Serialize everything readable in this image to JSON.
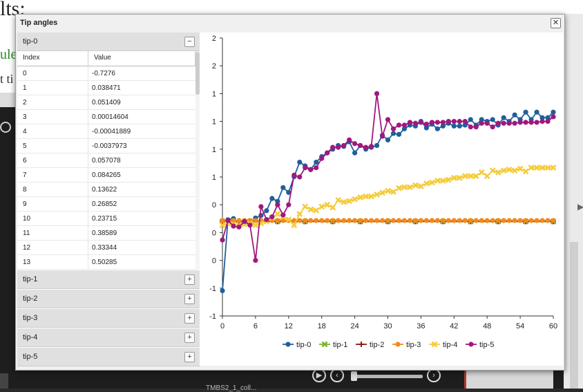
{
  "background": {
    "title_fragment": "lts:",
    "green_fragment": "ule",
    "text_fragment": "t ti",
    "caption_fragment": "TMBS2_1_coll..."
  },
  "dialog": {
    "title": "Tip angles",
    "close_label": "✕"
  },
  "accordion": {
    "open_item": {
      "label": "tip-0",
      "toggle": "−"
    },
    "table": {
      "headers": [
        "Index",
        "Value"
      ],
      "rows": [
        [
          "0",
          "-0.7276"
        ],
        [
          "1",
          "0.038471"
        ],
        [
          "2",
          "0.051409"
        ],
        [
          "3",
          "0.00014604"
        ],
        [
          "4",
          "-0.00041889"
        ],
        [
          "5",
          "-0.0037973"
        ],
        [
          "6",
          "0.057078"
        ],
        [
          "7",
          "0.084265"
        ],
        [
          "8",
          "0.13622"
        ],
        [
          "9",
          "0.26852"
        ],
        [
          "10",
          "0.23715"
        ],
        [
          "11",
          "0.38589"
        ],
        [
          "12",
          "0.33344"
        ],
        [
          "13",
          "0.50285"
        ]
      ]
    },
    "closed_items": [
      {
        "label": "tip-1",
        "toggle": "+"
      },
      {
        "label": "tip-2",
        "toggle": "+"
      },
      {
        "label": "tip-3",
        "toggle": "+"
      },
      {
        "label": "tip-4",
        "toggle": "+"
      },
      {
        "label": "tip-5",
        "toggle": "+"
      }
    ]
  },
  "chart_data": {
    "type": "line",
    "xlim": [
      0,
      60
    ],
    "ylim": [
      -1,
      2
    ],
    "xticks": [
      "0",
      "6",
      "12",
      "18",
      "24",
      "30",
      "36",
      "42",
      "48",
      "54",
      "60"
    ],
    "yticks": [
      "-1",
      "-1",
      "0",
      "0",
      "0",
      "1",
      "1",
      "1",
      "1",
      "2",
      "2"
    ],
    "grid": false,
    "legend_position": "bottom",
    "series": [
      {
        "name": "tip-0",
        "color": "#1f5f9a",
        "marker": "circle",
        "x": [
          0,
          1,
          2,
          3,
          4,
          5,
          6,
          7,
          8,
          9,
          10,
          11,
          12,
          13,
          14,
          15,
          16,
          17,
          18,
          19,
          20,
          21,
          22,
          23,
          24,
          25,
          26,
          27,
          28,
          29,
          30,
          31,
          32,
          33,
          34,
          35,
          36,
          37,
          38,
          39,
          40,
          41,
          42,
          43,
          44,
          45,
          46,
          47,
          48,
          49,
          50,
          51,
          52,
          53,
          54,
          55,
          56,
          57,
          58,
          59,
          60
        ],
        "values": [
          -0.7276,
          0.0385,
          0.0514,
          0.0001,
          -0.0004,
          -0.0038,
          0.0571,
          0.0843,
          0.1362,
          0.2685,
          0.2372,
          0.3859,
          0.3334,
          0.5029,
          0.66,
          0.62,
          0.58,
          0.66,
          0.72,
          0.76,
          0.8,
          0.84,
          0.83,
          0.88,
          0.76,
          0.84,
          0.8,
          0.82,
          0.84,
          0.95,
          0.9,
          0.97,
          0.96,
          1.02,
          1.06,
          1.05,
          1.1,
          1.03,
          1.07,
          1.02,
          1.05,
          1.08,
          1.05,
          1.05,
          1.06,
          1.12,
          1.06,
          1.12,
          1.1,
          1.12,
          1.06,
          1.14,
          1.1,
          1.17,
          1.12,
          1.2,
          1.12,
          1.2,
          1.14,
          1.14,
          1.2
        ]
      },
      {
        "name": "tip-1",
        "color": "#7ab52a",
        "marker": "x",
        "x": [
          0,
          5,
          10,
          15,
          20,
          25,
          30,
          35,
          40,
          45,
          50,
          55,
          60
        ],
        "values": [
          0.02,
          0.02,
          0.02,
          0.02,
          0.02,
          0.02,
          0.02,
          0.02,
          0.02,
          0.02,
          0.02,
          0.02,
          0.02
        ]
      },
      {
        "name": "tip-2",
        "color": "#8b1a1a",
        "marker": "plus",
        "x": [
          0,
          5,
          10,
          15,
          20,
          25,
          30,
          35,
          40,
          45,
          50,
          55,
          60
        ],
        "values": [
          0.02,
          0.02,
          0.02,
          0.02,
          0.02,
          0.02,
          0.02,
          0.02,
          0.02,
          0.02,
          0.02,
          0.02,
          0.02
        ]
      },
      {
        "name": "tip-3",
        "color": "#f08a1e",
        "marker": "circle",
        "x": [
          0,
          1,
          2,
          3,
          4,
          5,
          6,
          7,
          8,
          9,
          10,
          11,
          12,
          13,
          14,
          15,
          16,
          17,
          18,
          19,
          20,
          21,
          22,
          23,
          24,
          25,
          26,
          27,
          28,
          29,
          30,
          31,
          32,
          33,
          34,
          35,
          36,
          37,
          38,
          39,
          40,
          41,
          42,
          43,
          44,
          45,
          46,
          47,
          48,
          49,
          50,
          51,
          52,
          53,
          54,
          55,
          56,
          57,
          58,
          59,
          60
        ],
        "values": [
          0.03,
          0.03,
          0.03,
          0.03,
          0.03,
          0.03,
          0.03,
          0.03,
          0.03,
          0.03,
          0.03,
          0.03,
          0.03,
          0.03,
          0.03,
          0.03,
          0.03,
          0.03,
          0.03,
          0.03,
          0.03,
          0.03,
          0.03,
          0.03,
          0.03,
          0.03,
          0.03,
          0.03,
          0.03,
          0.03,
          0.03,
          0.03,
          0.03,
          0.03,
          0.03,
          0.03,
          0.03,
          0.03,
          0.03,
          0.03,
          0.03,
          0.03,
          0.03,
          0.03,
          0.03,
          0.03,
          0.03,
          0.03,
          0.03,
          0.03,
          0.03,
          0.03,
          0.03,
          0.03,
          0.03,
          0.03,
          0.03,
          0.03,
          0.03,
          0.03,
          0.03
        ]
      },
      {
        "name": "tip-4",
        "color": "#f4cc3a",
        "marker": "x",
        "x": [
          0,
          1,
          2,
          3,
          4,
          5,
          6,
          7,
          8,
          9,
          10,
          11,
          12,
          13,
          14,
          15,
          16,
          17,
          18,
          19,
          20,
          21,
          22,
          23,
          24,
          25,
          26,
          27,
          28,
          29,
          30,
          31,
          32,
          33,
          34,
          35,
          36,
          37,
          38,
          39,
          40,
          41,
          42,
          43,
          44,
          45,
          46,
          47,
          48,
          49,
          50,
          51,
          52,
          53,
          54,
          55,
          56,
          57,
          58,
          59,
          60
        ],
        "values": [
          -0.02,
          0.0,
          -0.01,
          -0.02,
          -0.01,
          0.0,
          -0.02,
          0.0,
          0.02,
          0.06,
          0.1,
          0.07,
          0.04,
          -0.02,
          0.1,
          0.18,
          0.15,
          0.14,
          0.18,
          0.2,
          0.17,
          0.25,
          0.23,
          0.24,
          0.26,
          0.28,
          0.29,
          0.29,
          0.31,
          0.33,
          0.35,
          0.34,
          0.38,
          0.39,
          0.39,
          0.41,
          0.4,
          0.43,
          0.44,
          0.46,
          0.46,
          0.47,
          0.49,
          0.49,
          0.51,
          0.51,
          0.51,
          0.55,
          0.51,
          0.57,
          0.55,
          0.57,
          0.58,
          0.57,
          0.59,
          0.56,
          0.6,
          0.6,
          0.6,
          0.6,
          0.6
        ]
      },
      {
        "name": "tip-5",
        "color": "#a0187e",
        "marker": "circle",
        "x": [
          0,
          1,
          2,
          3,
          4,
          5,
          6,
          7,
          8,
          9,
          10,
          11,
          12,
          13,
          14,
          15,
          16,
          17,
          18,
          19,
          20,
          21,
          22,
          23,
          24,
          25,
          26,
          27,
          28,
          29,
          30,
          31,
          32,
          33,
          34,
          35,
          36,
          37,
          38,
          39,
          40,
          41,
          42,
          43,
          44,
          45,
          46,
          47,
          48,
          49,
          50,
          51,
          52,
          53,
          54,
          55,
          56,
          57,
          58,
          59,
          60
        ],
        "values": [
          -0.18,
          0.03,
          -0.03,
          -0.04,
          0.02,
          -0.02,
          -0.4,
          0.18,
          0.04,
          0.07,
          0.2,
          0.09,
          0.2,
          0.52,
          0.5,
          0.6,
          0.58,
          0.6,
          0.7,
          0.76,
          0.82,
          0.82,
          0.84,
          0.9,
          0.86,
          0.84,
          0.82,
          0.83,
          1.4,
          0.94,
          1.12,
          1.02,
          1.06,
          1.06,
          1.09,
          1.08,
          1.09,
          1.07,
          1.09,
          1.09,
          1.09,
          1.1,
          1.1,
          1.1,
          1.1,
          1.04,
          1.04,
          1.08,
          1.08,
          1.04,
          1.08,
          1.08,
          1.08,
          1.08,
          1.09,
          1.09,
          1.09,
          1.09,
          1.1,
          1.1,
          1.15
        ]
      }
    ]
  }
}
